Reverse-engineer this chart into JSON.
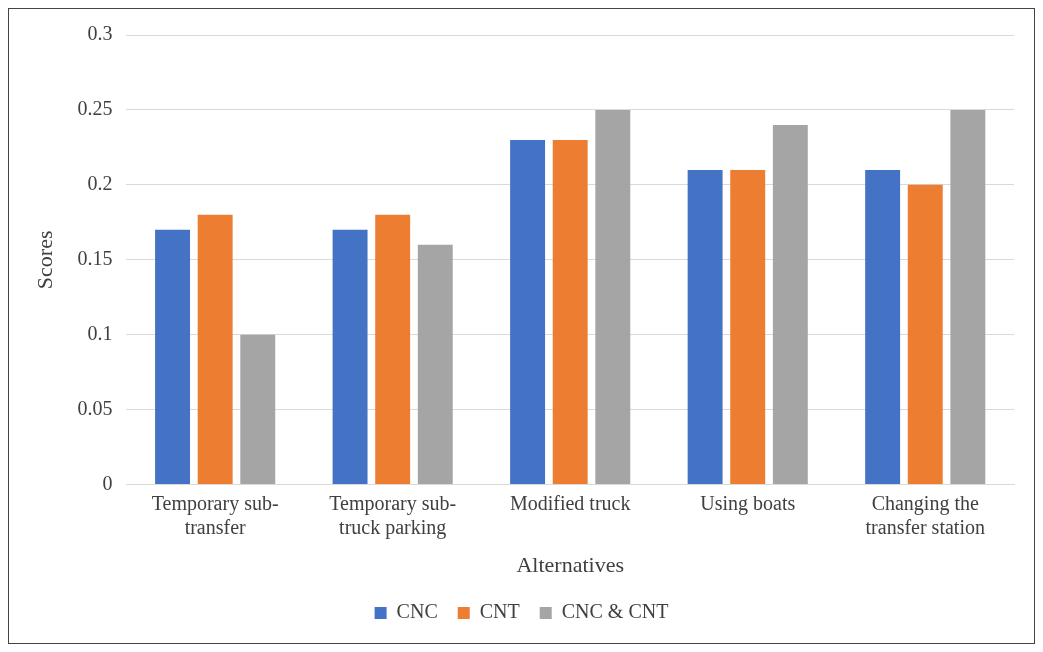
{
  "chart_data": {
    "type": "bar",
    "xlabel": "Alternatives",
    "ylabel": "Scores",
    "categories": [
      "Temporary sub-transfer",
      "Temporary sub-truck parking",
      "Modified truck",
      "Using boats",
      "Changing the transfer station"
    ],
    "series": [
      {
        "name": "CNC",
        "color": "#4472c4",
        "values": [
          0.17,
          0.17,
          0.23,
          0.21,
          0.21
        ]
      },
      {
        "name": "CNT",
        "color": "#ed7d31",
        "values": [
          0.18,
          0.18,
          0.23,
          0.21,
          0.2
        ]
      },
      {
        "name": "CNC & CNT",
        "color": "#a5a5a5",
        "values": [
          0.1,
          0.16,
          0.25,
          0.24,
          0.25
        ]
      }
    ],
    "ylim": [
      0,
      0.3
    ],
    "yticks": [
      0,
      0.05,
      0.1,
      0.15,
      0.2,
      0.25,
      0.3
    ],
    "grid": "y",
    "legend": "bottom"
  }
}
